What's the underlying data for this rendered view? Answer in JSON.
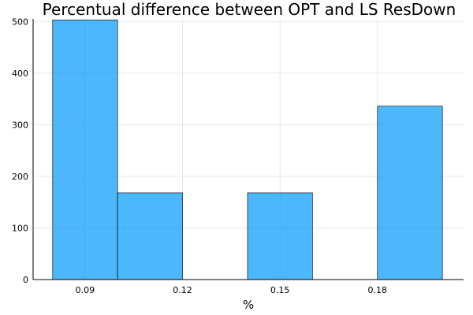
{
  "chart_data": {
    "type": "bar",
    "title": "Percentual difference between OPT and LS ResDown",
    "xlabel": "%",
    "ylabel": "",
    "bins": [
      {
        "x0": 0.08,
        "x1": 0.1,
        "value": 503
      },
      {
        "x0": 0.1,
        "x1": 0.12,
        "value": 168
      },
      {
        "x0": 0.12,
        "x1": 0.14,
        "value": 0
      },
      {
        "x0": 0.14,
        "x1": 0.16,
        "value": 168
      },
      {
        "x0": 0.16,
        "x1": 0.18,
        "value": 0
      },
      {
        "x0": 0.18,
        "x1": 0.2,
        "value": 336
      }
    ],
    "xlim": [
      0.074,
      0.2065
    ],
    "ylim": [
      0,
      505
    ],
    "xticks": [
      0.09,
      0.12,
      0.15,
      0.18
    ],
    "xtick_labels": [
      "0.09",
      "0.12",
      "0.15",
      "0.18"
    ],
    "yticks": [
      0,
      100,
      200,
      300,
      400,
      500
    ],
    "ytick_labels": [
      "0",
      "100",
      "200",
      "300",
      "400",
      "500"
    ],
    "grid": true,
    "legend": "none",
    "bar_color": "#009AFA",
    "bar_opacity": 0.7
  }
}
